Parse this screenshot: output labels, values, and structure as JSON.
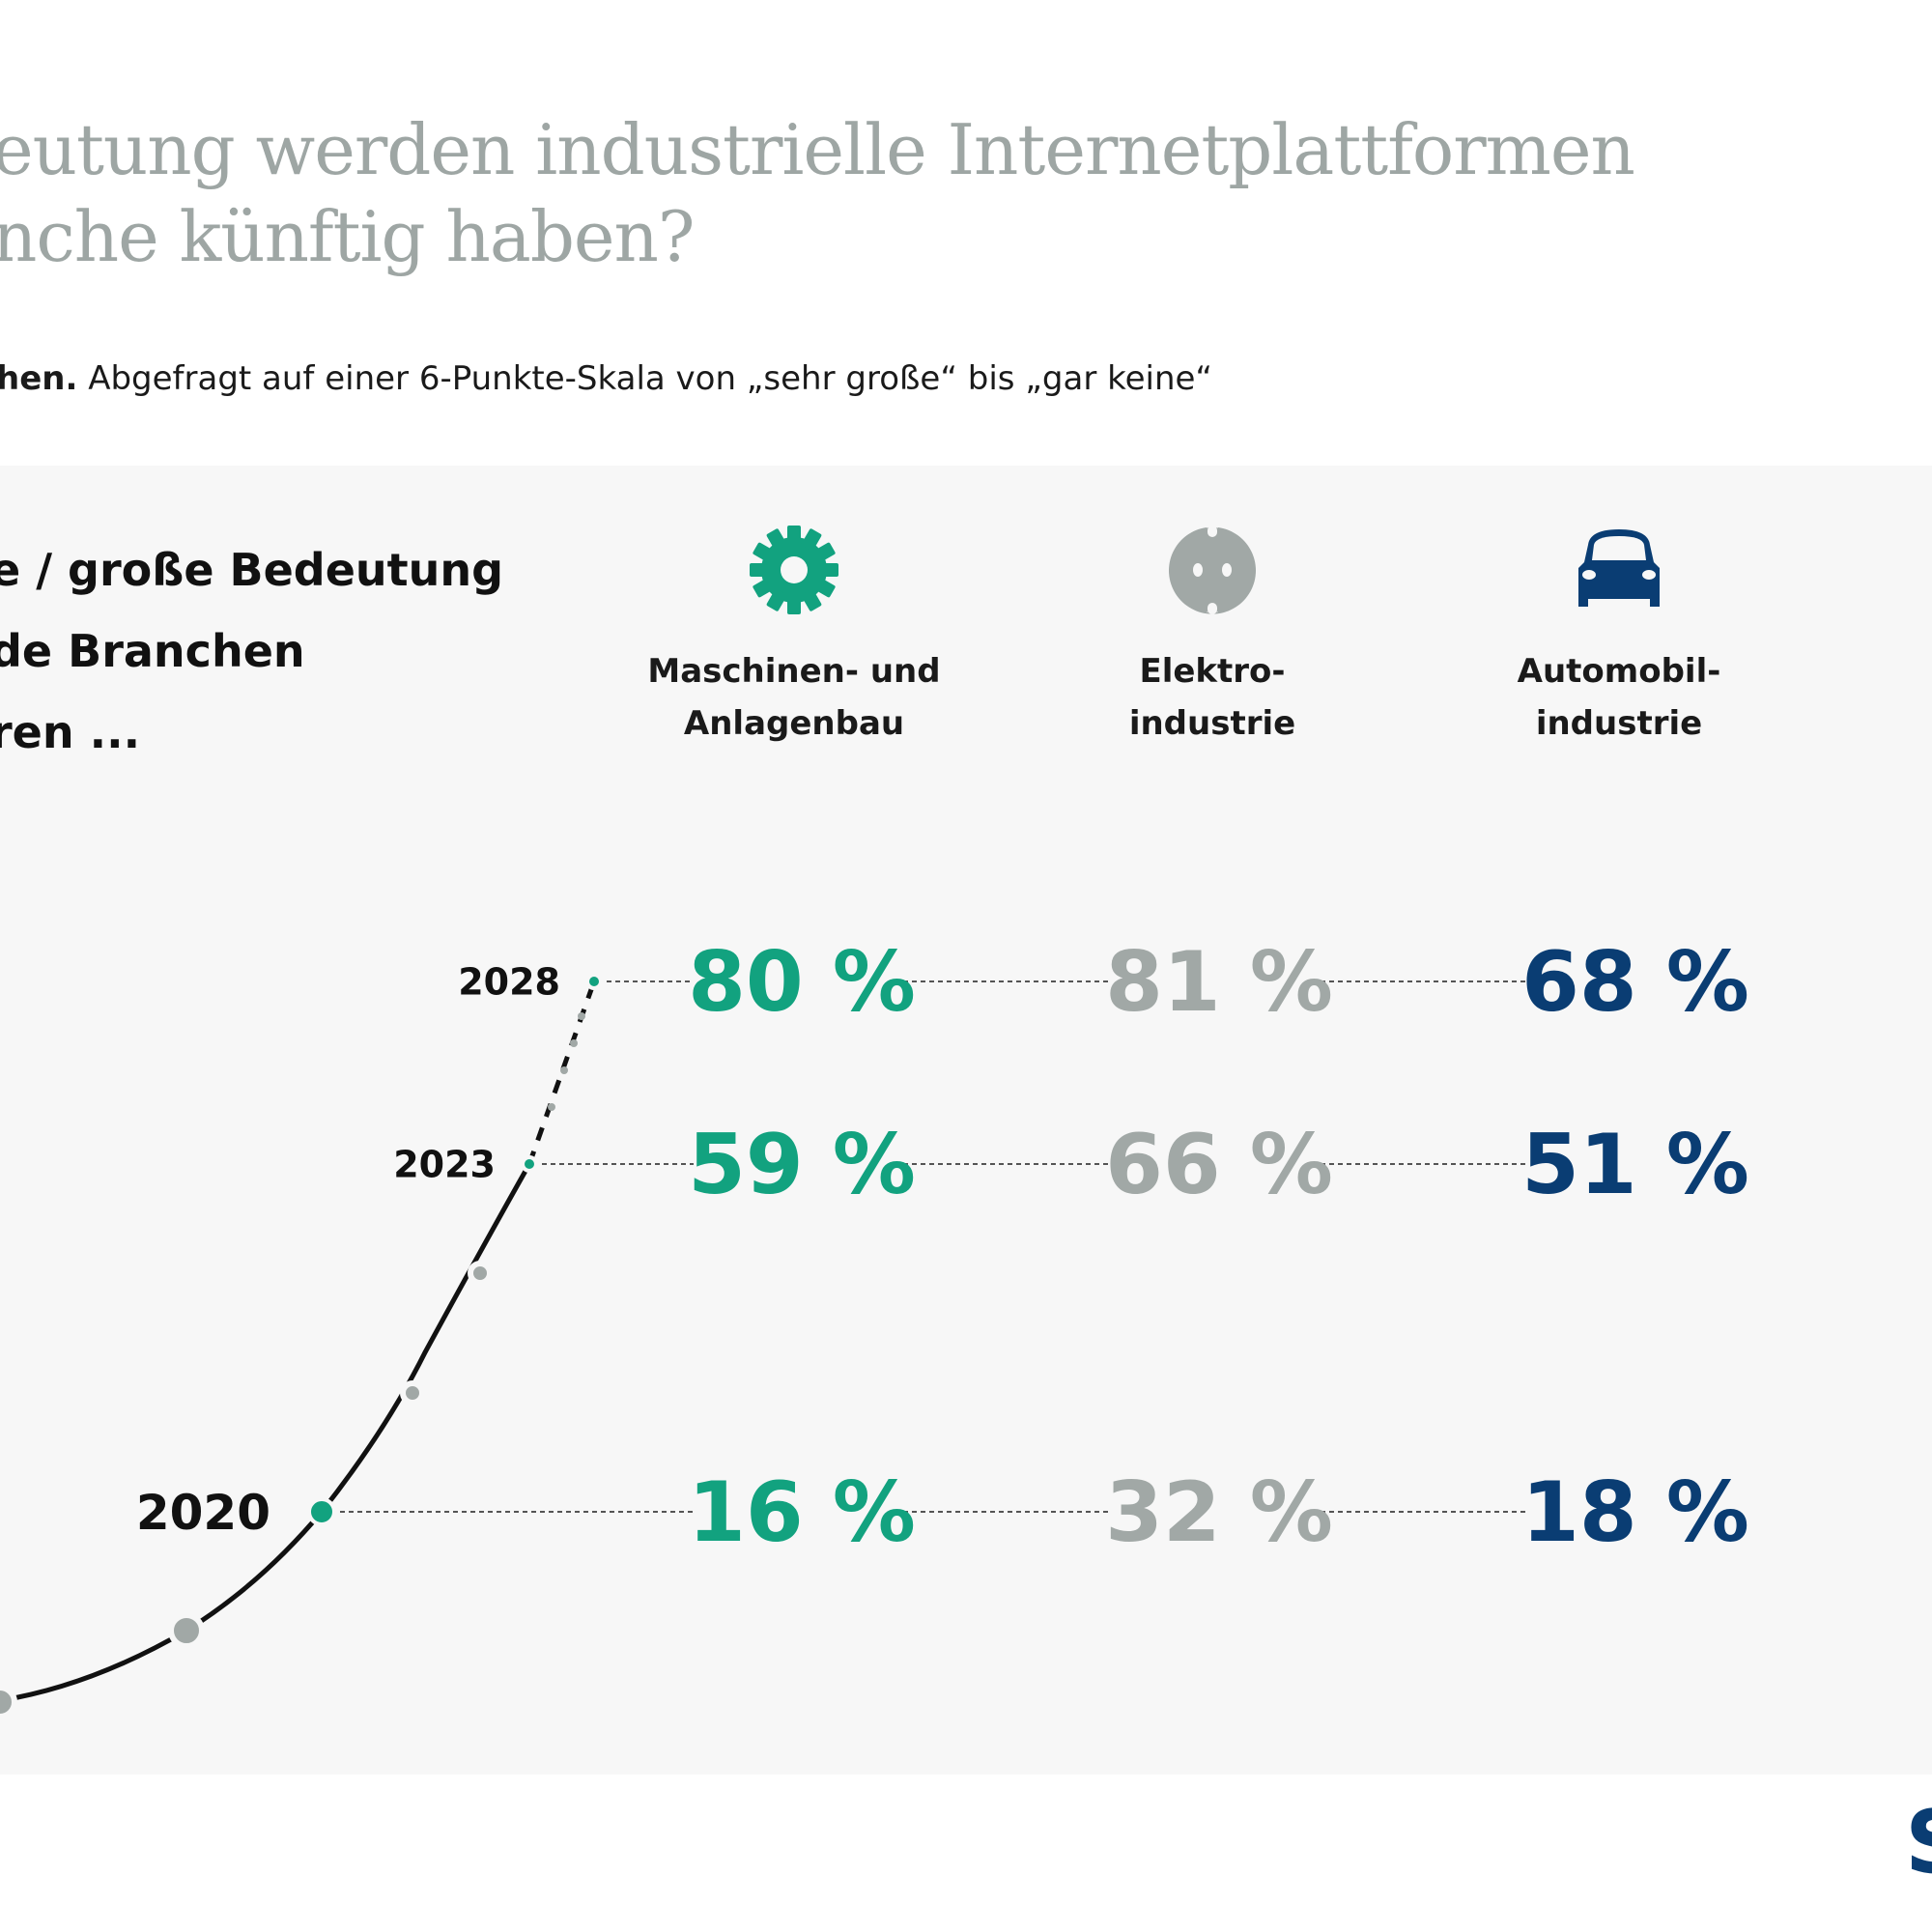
{
  "header": {
    "title_line1": "eutung werden industrielle Internetplattformen",
    "title_line2": "nche künftig haben?",
    "subtitle_bold": "hen.",
    "subtitle_text": " Abgefragt auf einer 6-Punkte-Skala von „sehr große“ bis „gar keine“"
  },
  "question": {
    "line1": "e / große Bedeutung",
    "line2": "de Branchen",
    "line3": "ren ..."
  },
  "industries": [
    {
      "icon": "gear-icon",
      "label_line1": "Maschinen- und",
      "label_line2": "Anlagenbau",
      "color": "#12a27f"
    },
    {
      "icon": "power-socket-icon",
      "label_line1": "Elektro-",
      "label_line2": "industrie",
      "color": "#a1a8a6"
    },
    {
      "icon": "car-icon",
      "label_line1": "Automobil-",
      "label_line2": "industrie",
      "color": "#0a3d73"
    }
  ],
  "logo": "S",
  "chart_data": {
    "type": "table",
    "title": "… große / große Bedeutung … Branchen … ren …",
    "xlabel": "",
    "ylabel": "",
    "unit": "%",
    "years": [
      "2020",
      "2023",
      "2028"
    ],
    "series": [
      {
        "name": "Maschinen- und Anlagenbau",
        "values": [
          16,
          59,
          80
        ],
        "labels": [
          "16 %",
          "59 %",
          "80 %"
        ],
        "color": "#12a27f"
      },
      {
        "name": "Elektroindustrie",
        "values": [
          32,
          66,
          81
        ],
        "labels": [
          "32 %",
          "66 %",
          "81 %"
        ],
        "color": "#a1a8a6"
      },
      {
        "name": "Automobilindustrie",
        "values": [
          18,
          51,
          68
        ],
        "labels": [
          "18 %",
          "51 %",
          "68 %"
        ],
        "color": "#0a3d73"
      }
    ],
    "timeline": {
      "highlight_color": "#12a27f",
      "marker_color": "#a1a8a6",
      "projection_dashed_after": "2023"
    }
  }
}
